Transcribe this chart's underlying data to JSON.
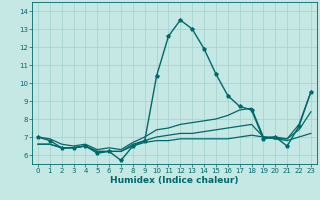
{
  "xlabel": "Humidex (Indice chaleur)",
  "xlim": [
    -0.5,
    23.5
  ],
  "ylim": [
    5.5,
    14.5
  ],
  "yticks": [
    6,
    7,
    8,
    9,
    10,
    11,
    12,
    13,
    14
  ],
  "xticks": [
    0,
    1,
    2,
    3,
    4,
    5,
    6,
    7,
    8,
    9,
    10,
    11,
    12,
    13,
    14,
    15,
    16,
    17,
    18,
    19,
    20,
    21,
    22,
    23
  ],
  "background_color": "#c5e8e5",
  "grid_color": "#a8d4d0",
  "line_color": "#006868",
  "lines": [
    [
      7.0,
      6.8,
      6.4,
      6.4,
      6.5,
      6.1,
      6.2,
      5.7,
      6.5,
      6.8,
      10.4,
      12.6,
      13.5,
      13.0,
      11.9,
      10.5,
      9.3,
      8.7,
      8.5,
      6.9,
      7.0,
      6.5,
      7.6,
      9.5
    ],
    [
      7.0,
      6.9,
      6.6,
      6.5,
      6.6,
      6.3,
      6.4,
      6.3,
      6.7,
      7.0,
      7.4,
      7.5,
      7.7,
      7.8,
      7.9,
      8.0,
      8.2,
      8.5,
      8.6,
      7.0,
      7.0,
      6.9,
      7.7,
      9.5
    ],
    [
      6.6,
      6.6,
      6.4,
      6.4,
      6.5,
      6.2,
      6.2,
      6.2,
      6.5,
      6.7,
      6.8,
      6.8,
      6.9,
      6.9,
      6.9,
      6.9,
      6.9,
      7.0,
      7.1,
      7.0,
      6.9,
      6.8,
      7.0,
      7.2
    ],
    [
      6.6,
      6.6,
      6.4,
      6.4,
      6.5,
      6.2,
      6.2,
      6.2,
      6.6,
      6.8,
      7.0,
      7.1,
      7.2,
      7.2,
      7.3,
      7.4,
      7.5,
      7.6,
      7.7,
      7.0,
      6.9,
      6.9,
      7.4,
      8.4
    ]
  ]
}
